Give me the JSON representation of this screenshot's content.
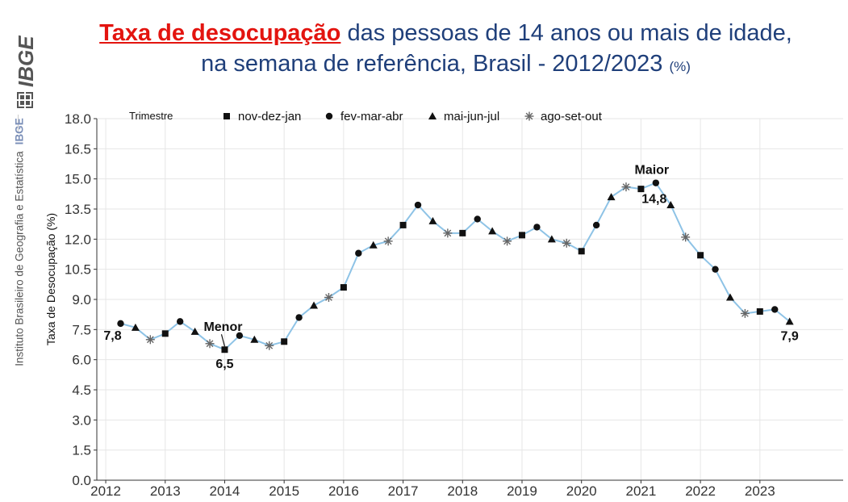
{
  "brand": {
    "logo_text": "IBGE",
    "side_text": "Instituto Brasileiro de Geografia e Estatística",
    "side_abbr": "IBGE"
  },
  "title": {
    "highlight": "Taxa de desocupação",
    "rest_line1": " das pessoas de 14 anos ou mais de idade,",
    "line2": "na semana de referência, Brasil - 2012/2023",
    "unit": "(%)"
  },
  "colors": {
    "title": "#1f3f7a",
    "highlight": "#e3140f",
    "line": "#8ec3e6",
    "grid": "#e6e6e6",
    "marker": "#111111"
  },
  "chart_data": {
    "type": "line",
    "ylabel": "Taxa de Desocupação (%)",
    "xlabel": "",
    "ylim": [
      0,
      18
    ],
    "yticks": [
      "0.0",
      "1.5",
      "3.0",
      "4.5",
      "6.0",
      "7.5",
      "9.0",
      "10.5",
      "12.0",
      "13.5",
      "15.0",
      "16.5",
      "18.0"
    ],
    "xticks": [
      "2012",
      "2013",
      "2014",
      "2015",
      "2016",
      "2017",
      "2018",
      "2019",
      "2020",
      "2021",
      "2022",
      "2023"
    ],
    "grid": true,
    "legend": {
      "title": "Trimestre",
      "placement": "top-left",
      "entries": [
        {
          "label": "nov-dez-jan",
          "marker": "square"
        },
        {
          "label": "fev-mar-abr",
          "marker": "circle"
        },
        {
          "label": "mai-jun-jul",
          "marker": "triangle"
        },
        {
          "label": "ago-set-out",
          "marker": "asterisk"
        }
      ]
    },
    "points": [
      {
        "x": 2012.25,
        "y": 7.8,
        "m": "circle"
      },
      {
        "x": 2012.5,
        "y": 7.6,
        "m": "triangle"
      },
      {
        "x": 2012.75,
        "y": 7.0,
        "m": "asterisk"
      },
      {
        "x": 2013.0,
        "y": 7.3,
        "m": "square"
      },
      {
        "x": 2013.25,
        "y": 7.9,
        "m": "circle"
      },
      {
        "x": 2013.5,
        "y": 7.4,
        "m": "triangle"
      },
      {
        "x": 2013.75,
        "y": 6.8,
        "m": "asterisk"
      },
      {
        "x": 2014.0,
        "y": 6.5,
        "m": "square"
      },
      {
        "x": 2014.25,
        "y": 7.2,
        "m": "circle"
      },
      {
        "x": 2014.5,
        "y": 7.0,
        "m": "triangle"
      },
      {
        "x": 2014.75,
        "y": 6.7,
        "m": "asterisk"
      },
      {
        "x": 2015.0,
        "y": 6.9,
        "m": "square"
      },
      {
        "x": 2015.25,
        "y": 8.1,
        "m": "circle"
      },
      {
        "x": 2015.5,
        "y": 8.7,
        "m": "triangle"
      },
      {
        "x": 2015.75,
        "y": 9.1,
        "m": "asterisk"
      },
      {
        "x": 2016.0,
        "y": 9.6,
        "m": "square"
      },
      {
        "x": 2016.25,
        "y": 11.3,
        "m": "circle"
      },
      {
        "x": 2016.5,
        "y": 11.7,
        "m": "triangle"
      },
      {
        "x": 2016.75,
        "y": 11.9,
        "m": "asterisk"
      },
      {
        "x": 2017.0,
        "y": 12.7,
        "m": "square"
      },
      {
        "x": 2017.25,
        "y": 13.7,
        "m": "circle"
      },
      {
        "x": 2017.5,
        "y": 12.9,
        "m": "triangle"
      },
      {
        "x": 2017.75,
        "y": 12.3,
        "m": "asterisk"
      },
      {
        "x": 2018.0,
        "y": 12.3,
        "m": "square"
      },
      {
        "x": 2018.25,
        "y": 13.0,
        "m": "circle"
      },
      {
        "x": 2018.5,
        "y": 12.4,
        "m": "triangle"
      },
      {
        "x": 2018.75,
        "y": 11.9,
        "m": "asterisk"
      },
      {
        "x": 2019.0,
        "y": 12.2,
        "m": "square"
      },
      {
        "x": 2019.25,
        "y": 12.6,
        "m": "circle"
      },
      {
        "x": 2019.5,
        "y": 12.0,
        "m": "triangle"
      },
      {
        "x": 2019.75,
        "y": 11.8,
        "m": "asterisk"
      },
      {
        "x": 2020.0,
        "y": 11.4,
        "m": "square"
      },
      {
        "x": 2020.25,
        "y": 12.7,
        "m": "circle"
      },
      {
        "x": 2020.5,
        "y": 14.1,
        "m": "triangle"
      },
      {
        "x": 2020.75,
        "y": 14.6,
        "m": "asterisk"
      },
      {
        "x": 2021.0,
        "y": 14.5,
        "m": "square"
      },
      {
        "x": 2021.25,
        "y": 14.8,
        "m": "circle"
      },
      {
        "x": 2021.5,
        "y": 13.7,
        "m": "triangle"
      },
      {
        "x": 2021.75,
        "y": 12.1,
        "m": "asterisk"
      },
      {
        "x": 2022.0,
        "y": 11.2,
        "m": "square"
      },
      {
        "x": 2022.25,
        "y": 10.5,
        "m": "circle"
      },
      {
        "x": 2022.5,
        "y": 9.1,
        "m": "triangle"
      },
      {
        "x": 2022.75,
        "y": 8.3,
        "m": "asterisk"
      },
      {
        "x": 2023.0,
        "y": 8.4,
        "m": "square"
      },
      {
        "x": 2023.25,
        "y": 8.5,
        "m": "circle"
      },
      {
        "x": 2023.5,
        "y": 7.9,
        "m": "triangle"
      }
    ],
    "annotations": [
      {
        "text": "7,8",
        "x": 2012.25,
        "y": 7.8,
        "pos": "below-left"
      },
      {
        "text": "Menor",
        "x": 2014.0,
        "y": 6.5,
        "pos": "above-left"
      },
      {
        "text": "6,5",
        "x": 2014.0,
        "y": 6.5,
        "pos": "below"
      },
      {
        "text": "Maior",
        "x": 2021.25,
        "y": 14.8,
        "pos": "above"
      },
      {
        "text": "14,8",
        "x": 2021.25,
        "y": 14.8,
        "pos": "below"
      },
      {
        "text": "7,9",
        "x": 2023.5,
        "y": 7.9,
        "pos": "below"
      }
    ]
  }
}
